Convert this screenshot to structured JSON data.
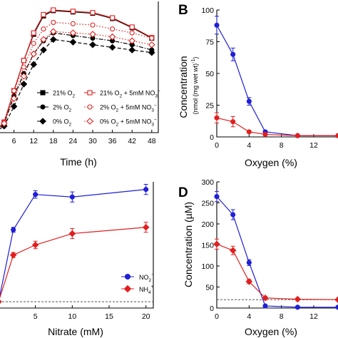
{
  "panel_labels": {
    "B": "B",
    "D": "D"
  },
  "colors": {
    "blue": "#1f1fd6",
    "red": "#e02020",
    "black": "#000000",
    "dashed": "#555555"
  },
  "chart_data": [
    {
      "id": "A",
      "type": "line",
      "xlabel": "Time (h)",
      "ylabel": "",
      "xlim": [
        0,
        50
      ],
      "ylim": [
        0,
        1.0
      ],
      "xticks": [
        "6",
        "12",
        "18",
        "24",
        "30",
        "36",
        "42",
        "48"
      ],
      "xtick_values": [
        6,
        12,
        18,
        24,
        30,
        36,
        42,
        48
      ],
      "legend": [
        {
          "text": "21% O",
          "sub": "2",
          "extra": ""
        },
        {
          "text": "21% O",
          "sub": "2",
          "extra": " + 5mM NO"
        },
        {
          "text": "2% O",
          "sub": "2",
          "extra": ""
        },
        {
          "text": "2% O",
          "sub": "2",
          "extra": " + 5mM NO"
        },
        {
          "text": "0% O",
          "sub": "2",
          "extra": ""
        },
        {
          "text": "0% O",
          "sub": "2",
          "extra": " + 5mM NO"
        }
      ],
      "legend_nitrate_sub": "3",
      "legend_nitrate_sup": "−",
      "series": [
        {
          "name": "21% O2",
          "marker": "square",
          "filled": true,
          "color": "#000000",
          "dash": "solid",
          "x": [
            0,
            3,
            6,
            9,
            12,
            15,
            18,
            24,
            30,
            36,
            42,
            48
          ],
          "y": [
            0.0,
            0.08,
            0.32,
            0.55,
            0.75,
            0.89,
            0.93,
            0.92,
            0.91,
            0.87,
            0.8,
            0.72
          ]
        },
        {
          "name": "21% O2 + 5mM NO3-",
          "marker": "square",
          "filled": false,
          "color": "#e02020",
          "dash": "solid",
          "x": [
            0,
            3,
            6,
            9,
            12,
            15,
            18,
            24,
            30,
            36,
            42,
            48
          ],
          "y": [
            0.0,
            0.08,
            0.32,
            0.55,
            0.76,
            0.9,
            0.935,
            0.925,
            0.915,
            0.875,
            0.805,
            0.725
          ]
        },
        {
          "name": "2% O2",
          "marker": "circle",
          "filled": true,
          "color": "#000000",
          "dash": "dashdot",
          "x": [
            0,
            3,
            6,
            9,
            12,
            15,
            18,
            24,
            30,
            36,
            42,
            48
          ],
          "y": [
            0.0,
            0.07,
            0.28,
            0.45,
            0.6,
            0.7,
            0.76,
            0.74,
            0.72,
            0.7,
            0.67,
            0.63
          ]
        },
        {
          "name": "2% O2 + 5mM NO3-",
          "marker": "circle",
          "filled": false,
          "color": "#e02020",
          "dash": "dotted",
          "x": [
            0,
            3,
            6,
            9,
            12,
            15,
            18,
            24,
            30,
            36,
            42,
            48
          ],
          "y": [
            0.0,
            0.08,
            0.32,
            0.5,
            0.68,
            0.79,
            0.84,
            0.83,
            0.82,
            0.79,
            0.76,
            0.72
          ]
        },
        {
          "name": "0% O2",
          "marker": "diamond",
          "filled": true,
          "color": "#000000",
          "dash": "dashed",
          "x": [
            0,
            3,
            6,
            9,
            12,
            15,
            18,
            24,
            30,
            36,
            42,
            48
          ],
          "y": [
            0.0,
            0.05,
            0.2,
            0.37,
            0.52,
            0.63,
            0.71,
            0.69,
            0.67,
            0.65,
            0.63,
            0.61
          ]
        },
        {
          "name": "0% O2 + 5mM NO3-",
          "marker": "diamond",
          "filled": false,
          "color": "#e02020",
          "dash": "dotted",
          "x": [
            0,
            3,
            6,
            9,
            12,
            15,
            18,
            24,
            30,
            36,
            42,
            48
          ],
          "y": [
            0.0,
            0.07,
            0.26,
            0.43,
            0.6,
            0.71,
            0.77,
            0.76,
            0.75,
            0.73,
            0.7,
            0.67
          ]
        }
      ]
    },
    {
      "id": "B",
      "type": "line",
      "xlabel": "Oxygen (%)",
      "ylabel": "Concentration",
      "ylabel_sub": "(nmol (mg wet wt)",
      "ylabel_sup": "-1",
      "ylabel_close": ")",
      "xlim": [
        0,
        15
      ],
      "ylim": [
        0,
        100
      ],
      "xticks": [
        "0",
        "4",
        "8",
        "12"
      ],
      "xtick_values": [
        0,
        4,
        8,
        12
      ],
      "yticks": [
        "0",
        "25",
        "50",
        "75",
        "100"
      ],
      "ytick_values": [
        0,
        25,
        50,
        75,
        100
      ],
      "series": [
        {
          "name": "",
          "color": "#1f1fd6",
          "marker": "circle",
          "x": [
            0,
            2,
            4,
            6,
            10,
            15
          ],
          "y": [
            88,
            65,
            28,
            4,
            1,
            1
          ],
          "err": [
            7,
            5,
            3,
            1,
            0.5,
            0.5
          ]
        },
        {
          "name": "",
          "color": "#e02020",
          "marker": "circle",
          "x": [
            0,
            2,
            4,
            6,
            10,
            15
          ],
          "y": [
            15,
            12,
            4,
            2,
            1,
            1
          ],
          "err": [
            4,
            4,
            1,
            0.5,
            0.3,
            0.3
          ]
        }
      ]
    },
    {
      "id": "C",
      "type": "line",
      "xlabel": "Nitrate (mM)",
      "ylabel": "",
      "xlim": [
        0,
        21
      ],
      "ylim": [
        0,
        1.0
      ],
      "xticks": [
        "5",
        "10",
        "15",
        "20"
      ],
      "xtick_values": [
        5,
        10,
        15,
        20
      ],
      "legend": [
        {
          "text": "NO",
          "sub": "2",
          "sup": "−"
        },
        {
          "text": "NH",
          "sub": "4",
          "sup": "+"
        }
      ],
      "series": [
        {
          "name": "NO2−",
          "color": "#1f1fd6",
          "marker": "circle",
          "x": [
            0,
            2,
            5,
            10,
            20
          ],
          "y": [
            0.05,
            0.62,
            0.9,
            0.88,
            0.94
          ],
          "err": [
            0,
            0.02,
            0.03,
            0.04,
            0.04
          ]
        },
        {
          "name": "NH4+",
          "color": "#e02020",
          "marker": "diamond",
          "x": [
            0,
            2,
            5,
            10,
            20
          ],
          "y": [
            0.05,
            0.42,
            0.5,
            0.59,
            0.64
          ],
          "err": [
            0,
            0.02,
            0.03,
            0.04,
            0.04
          ]
        }
      ],
      "dashed_level": 0.05
    },
    {
      "id": "D",
      "type": "line",
      "xlabel": "Oxygen (%)",
      "ylabel": "Concentration (µM)",
      "xlim": [
        0,
        15
      ],
      "ylim": [
        0,
        300
      ],
      "xticks": [
        "0",
        "4",
        "8",
        "12"
      ],
      "xtick_values": [
        0,
        4,
        8,
        12
      ],
      "yticks": [
        "0",
        "50",
        "100",
        "150",
        "200",
        "250",
        "300"
      ],
      "ytick_values": [
        0,
        50,
        100,
        150,
        200,
        250,
        300
      ],
      "series": [
        {
          "name": "",
          "color": "#1f1fd6",
          "marker": "circle",
          "x": [
            0,
            2,
            4,
            6,
            10,
            15
          ],
          "y": [
            265,
            222,
            108,
            5,
            2,
            2
          ],
          "err": [
            12,
            12,
            7,
            2,
            1,
            1
          ]
        },
        {
          "name": "",
          "color": "#e02020",
          "marker": "diamond",
          "x": [
            0,
            2,
            4,
            6,
            10,
            15
          ],
          "y": [
            152,
            137,
            63,
            24,
            21,
            20
          ],
          "err": [
            12,
            10,
            5,
            3,
            2,
            2
          ]
        }
      ],
      "dashed_level": 20
    }
  ]
}
